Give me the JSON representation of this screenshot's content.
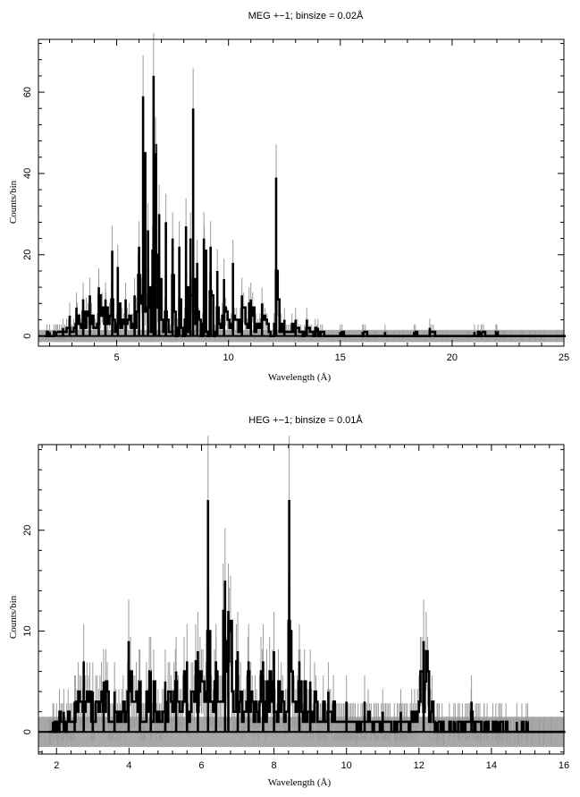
{
  "chart_data": [
    {
      "id": "meg",
      "type": "line",
      "title": "MEG +−1; binsize = 0.02Å",
      "xlabel": "Wavelength (Å)",
      "ylabel": "Counts/bin",
      "xlim": [
        1.5,
        25
      ],
      "ylim": [
        -2.5,
        73
      ],
      "xticks": [
        5,
        10,
        15,
        20,
        25
      ],
      "yticks": [
        0,
        20,
        40,
        60
      ],
      "background_band": [
        -1.5,
        1.5
      ],
      "peaks": [
        {
          "x": 2.0,
          "y": 1
        },
        {
          "x": 2.3,
          "y": 1
        },
        {
          "x": 2.6,
          "y": 2
        },
        {
          "x": 2.9,
          "y": 5
        },
        {
          "x": 3.2,
          "y": 7
        },
        {
          "x": 3.5,
          "y": 9
        },
        {
          "x": 3.8,
          "y": 10
        },
        {
          "x": 4.2,
          "y": 12
        },
        {
          "x": 4.5,
          "y": 9
        },
        {
          "x": 4.8,
          "y": 21
        },
        {
          "x": 5.05,
          "y": 17
        },
        {
          "x": 5.4,
          "y": 9
        },
        {
          "x": 5.8,
          "y": 10
        },
        {
          "x": 6.0,
          "y": 22
        },
        {
          "x": 6.18,
          "y": 59
        },
        {
          "x": 6.4,
          "y": 26
        },
        {
          "x": 6.65,
          "y": 64
        },
        {
          "x": 6.74,
          "y": 45
        },
        {
          "x": 6.9,
          "y": 30
        },
        {
          "x": 7.2,
          "y": 28
        },
        {
          "x": 7.5,
          "y": 24
        },
        {
          "x": 7.8,
          "y": 22
        },
        {
          "x": 8.1,
          "y": 27
        },
        {
          "x": 8.3,
          "y": 24
        },
        {
          "x": 8.42,
          "y": 56
        },
        {
          "x": 8.6,
          "y": 18
        },
        {
          "x": 8.9,
          "y": 24
        },
        {
          "x": 9.2,
          "y": 22
        },
        {
          "x": 9.5,
          "y": 16
        },
        {
          "x": 9.8,
          "y": 14
        },
        {
          "x": 10.2,
          "y": 18
        },
        {
          "x": 10.6,
          "y": 10
        },
        {
          "x": 11.0,
          "y": 9
        },
        {
          "x": 11.5,
          "y": 8
        },
        {
          "x": 12.13,
          "y": 39
        },
        {
          "x": 12.5,
          "y": 4
        },
        {
          "x": 13.0,
          "y": 4
        },
        {
          "x": 13.5,
          "y": 4
        },
        {
          "x": 14.0,
          "y": 2
        },
        {
          "x": 15.0,
          "y": 1
        },
        {
          "x": 16.0,
          "y": 1
        },
        {
          "x": 17.0,
          "y": 1
        },
        {
          "x": 18.3,
          "y": 1
        },
        {
          "x": 19.0,
          "y": 2
        },
        {
          "x": 21.0,
          "y": 1
        },
        {
          "x": 21.3,
          "y": 1
        },
        {
          "x": 22.0,
          "y": 1
        }
      ]
    },
    {
      "id": "heg",
      "type": "line",
      "title": "HEG +−1; binsize = 0.01Å",
      "xlabel": "Wavelength (Å)",
      "ylabel": "Counts/bin",
      "xlim": [
        1.5,
        16
      ],
      "ylim": [
        -2.2,
        28.5
      ],
      "xticks": [
        2,
        4,
        6,
        8,
        10,
        12,
        14,
        16
      ],
      "yticks": [
        0,
        10,
        20
      ],
      "background_band": [
        -1.5,
        1.5
      ],
      "peaks": [
        {
          "x": 1.9,
          "y": 1
        },
        {
          "x": 2.2,
          "y": 2
        },
        {
          "x": 2.5,
          "y": 3
        },
        {
          "x": 2.75,
          "y": 7
        },
        {
          "x": 3.0,
          "y": 4
        },
        {
          "x": 3.3,
          "y": 5
        },
        {
          "x": 3.6,
          "y": 4
        },
        {
          "x": 3.99,
          "y": 9
        },
        {
          "x": 4.3,
          "y": 5
        },
        {
          "x": 4.6,
          "y": 6
        },
        {
          "x": 5.0,
          "y": 5
        },
        {
          "x": 5.3,
          "y": 6
        },
        {
          "x": 5.6,
          "y": 7
        },
        {
          "x": 5.9,
          "y": 8
        },
        {
          "x": 6.18,
          "y": 23
        },
        {
          "x": 6.4,
          "y": 7
        },
        {
          "x": 6.65,
          "y": 15
        },
        {
          "x": 6.74,
          "y": 12
        },
        {
          "x": 7.0,
          "y": 8
        },
        {
          "x": 7.3,
          "y": 7
        },
        {
          "x": 7.7,
          "y": 7
        },
        {
          "x": 8.0,
          "y": 8
        },
        {
          "x": 8.42,
          "y": 23
        },
        {
          "x": 8.7,
          "y": 7
        },
        {
          "x": 9.0,
          "y": 5
        },
        {
          "x": 9.5,
          "y": 4
        },
        {
          "x": 10.0,
          "y": 3
        },
        {
          "x": 10.5,
          "y": 3
        },
        {
          "x": 11.0,
          "y": 2
        },
        {
          "x": 11.5,
          "y": 2
        },
        {
          "x": 12.13,
          "y": 9
        },
        {
          "x": 12.5,
          "y": 1
        },
        {
          "x": 13.0,
          "y": 1
        },
        {
          "x": 13.45,
          "y": 3
        },
        {
          "x": 13.8,
          "y": 1
        },
        {
          "x": 14.2,
          "y": 1
        },
        {
          "x": 14.7,
          "y": 1
        },
        {
          "x": 15.0,
          "y": 1
        }
      ]
    }
  ]
}
